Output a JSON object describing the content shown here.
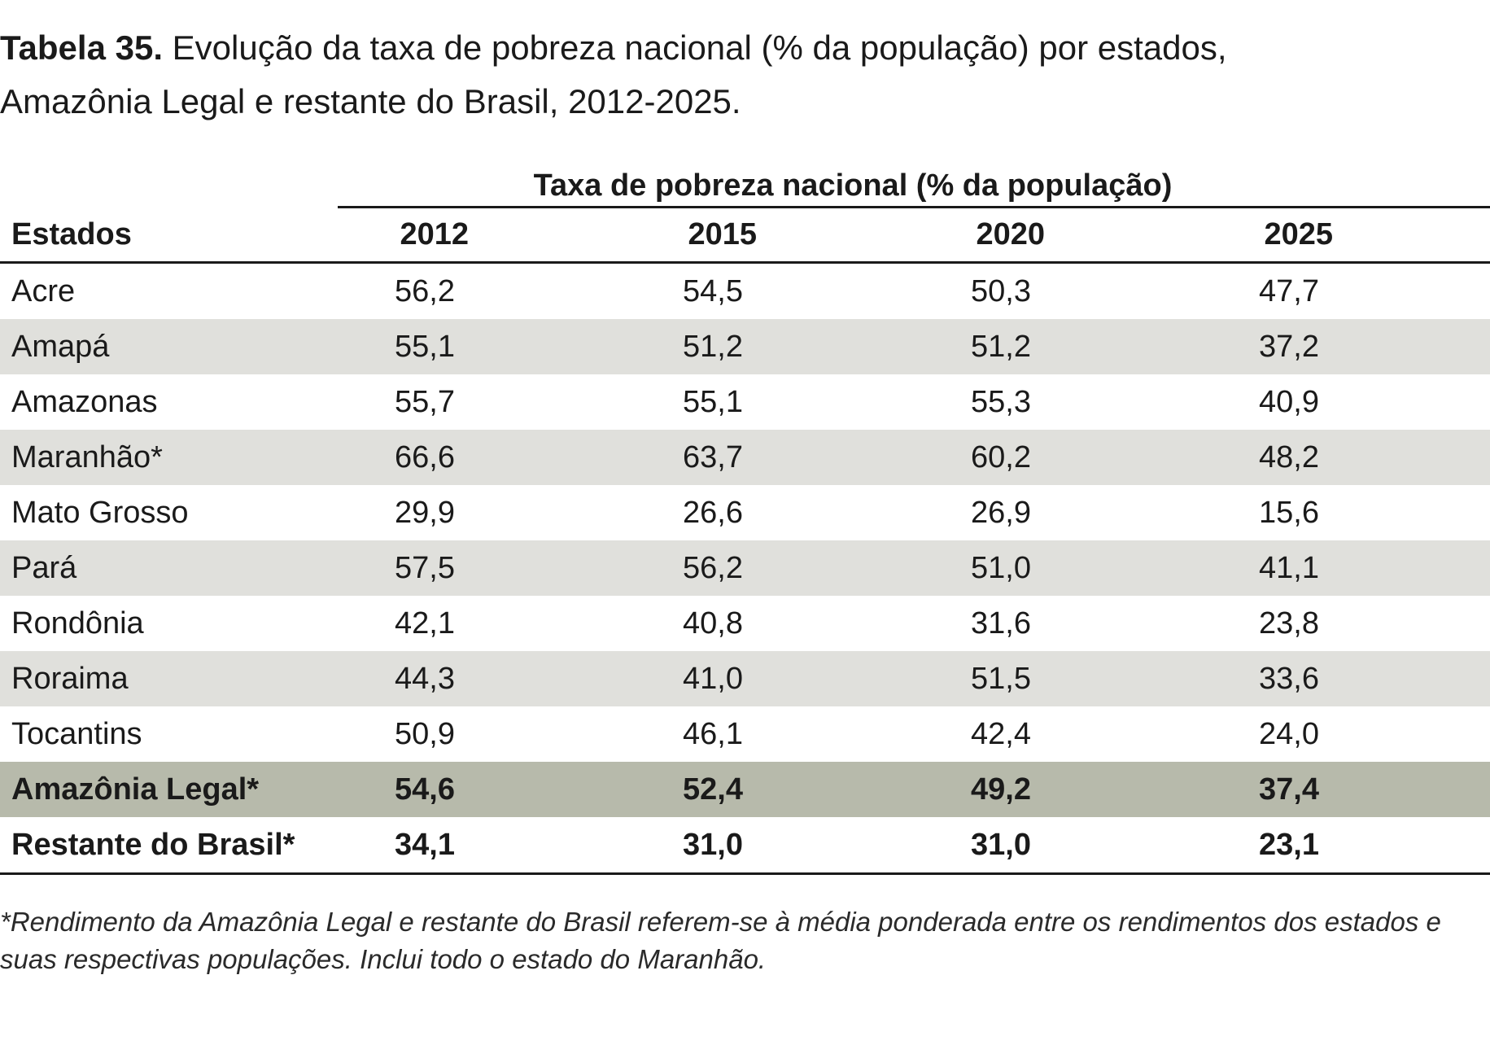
{
  "title": {
    "label": "Tabela 35.",
    "text": " Evolução da taxa de pobreza nacional (% da população) por estados, Amazônia Legal e restante do Brasil, 2012-2025."
  },
  "table": {
    "group_header": "Taxa de pobreza nacional (% da população)",
    "columns": [
      "Estados",
      "2012",
      "2015",
      "2020",
      "2025"
    ],
    "rows": [
      [
        "Acre",
        "56,2",
        "54,5",
        "50,3",
        "47,7"
      ],
      [
        "Amapá",
        "55,1",
        "51,2",
        "51,2",
        "37,2"
      ],
      [
        "Amazonas",
        "55,7",
        "55,1",
        "55,3",
        "40,9"
      ],
      [
        "Maranhão*",
        "66,6",
        "63,7",
        "60,2",
        "48,2"
      ],
      [
        "Mato Grosso",
        "29,9",
        "26,6",
        "26,9",
        "15,6"
      ],
      [
        "Pará",
        "57,5",
        "56,2",
        "51,0",
        "41,1"
      ],
      [
        "Rondônia",
        "42,1",
        "40,8",
        "31,6",
        "23,8"
      ],
      [
        "Roraima",
        "44,3",
        "41,0",
        "51,5",
        "33,6"
      ],
      [
        "Tocantins",
        "50,9",
        "46,1",
        "42,4",
        "24,0"
      ],
      [
        "Amazônia Legal*",
        "54,6",
        "52,4",
        "49,2",
        "37,4"
      ],
      [
        "Restante do Brasil*",
        "34,1",
        "31,0",
        "31,0",
        "23,1"
      ]
    ]
  },
  "footnote": "*Rendimento da Amazônia Legal e restante do Brasil referem-se à média ponderada entre os rendimentos dos estados e suas respectivas populações. Inclui todo o estado do Maranhão."
}
